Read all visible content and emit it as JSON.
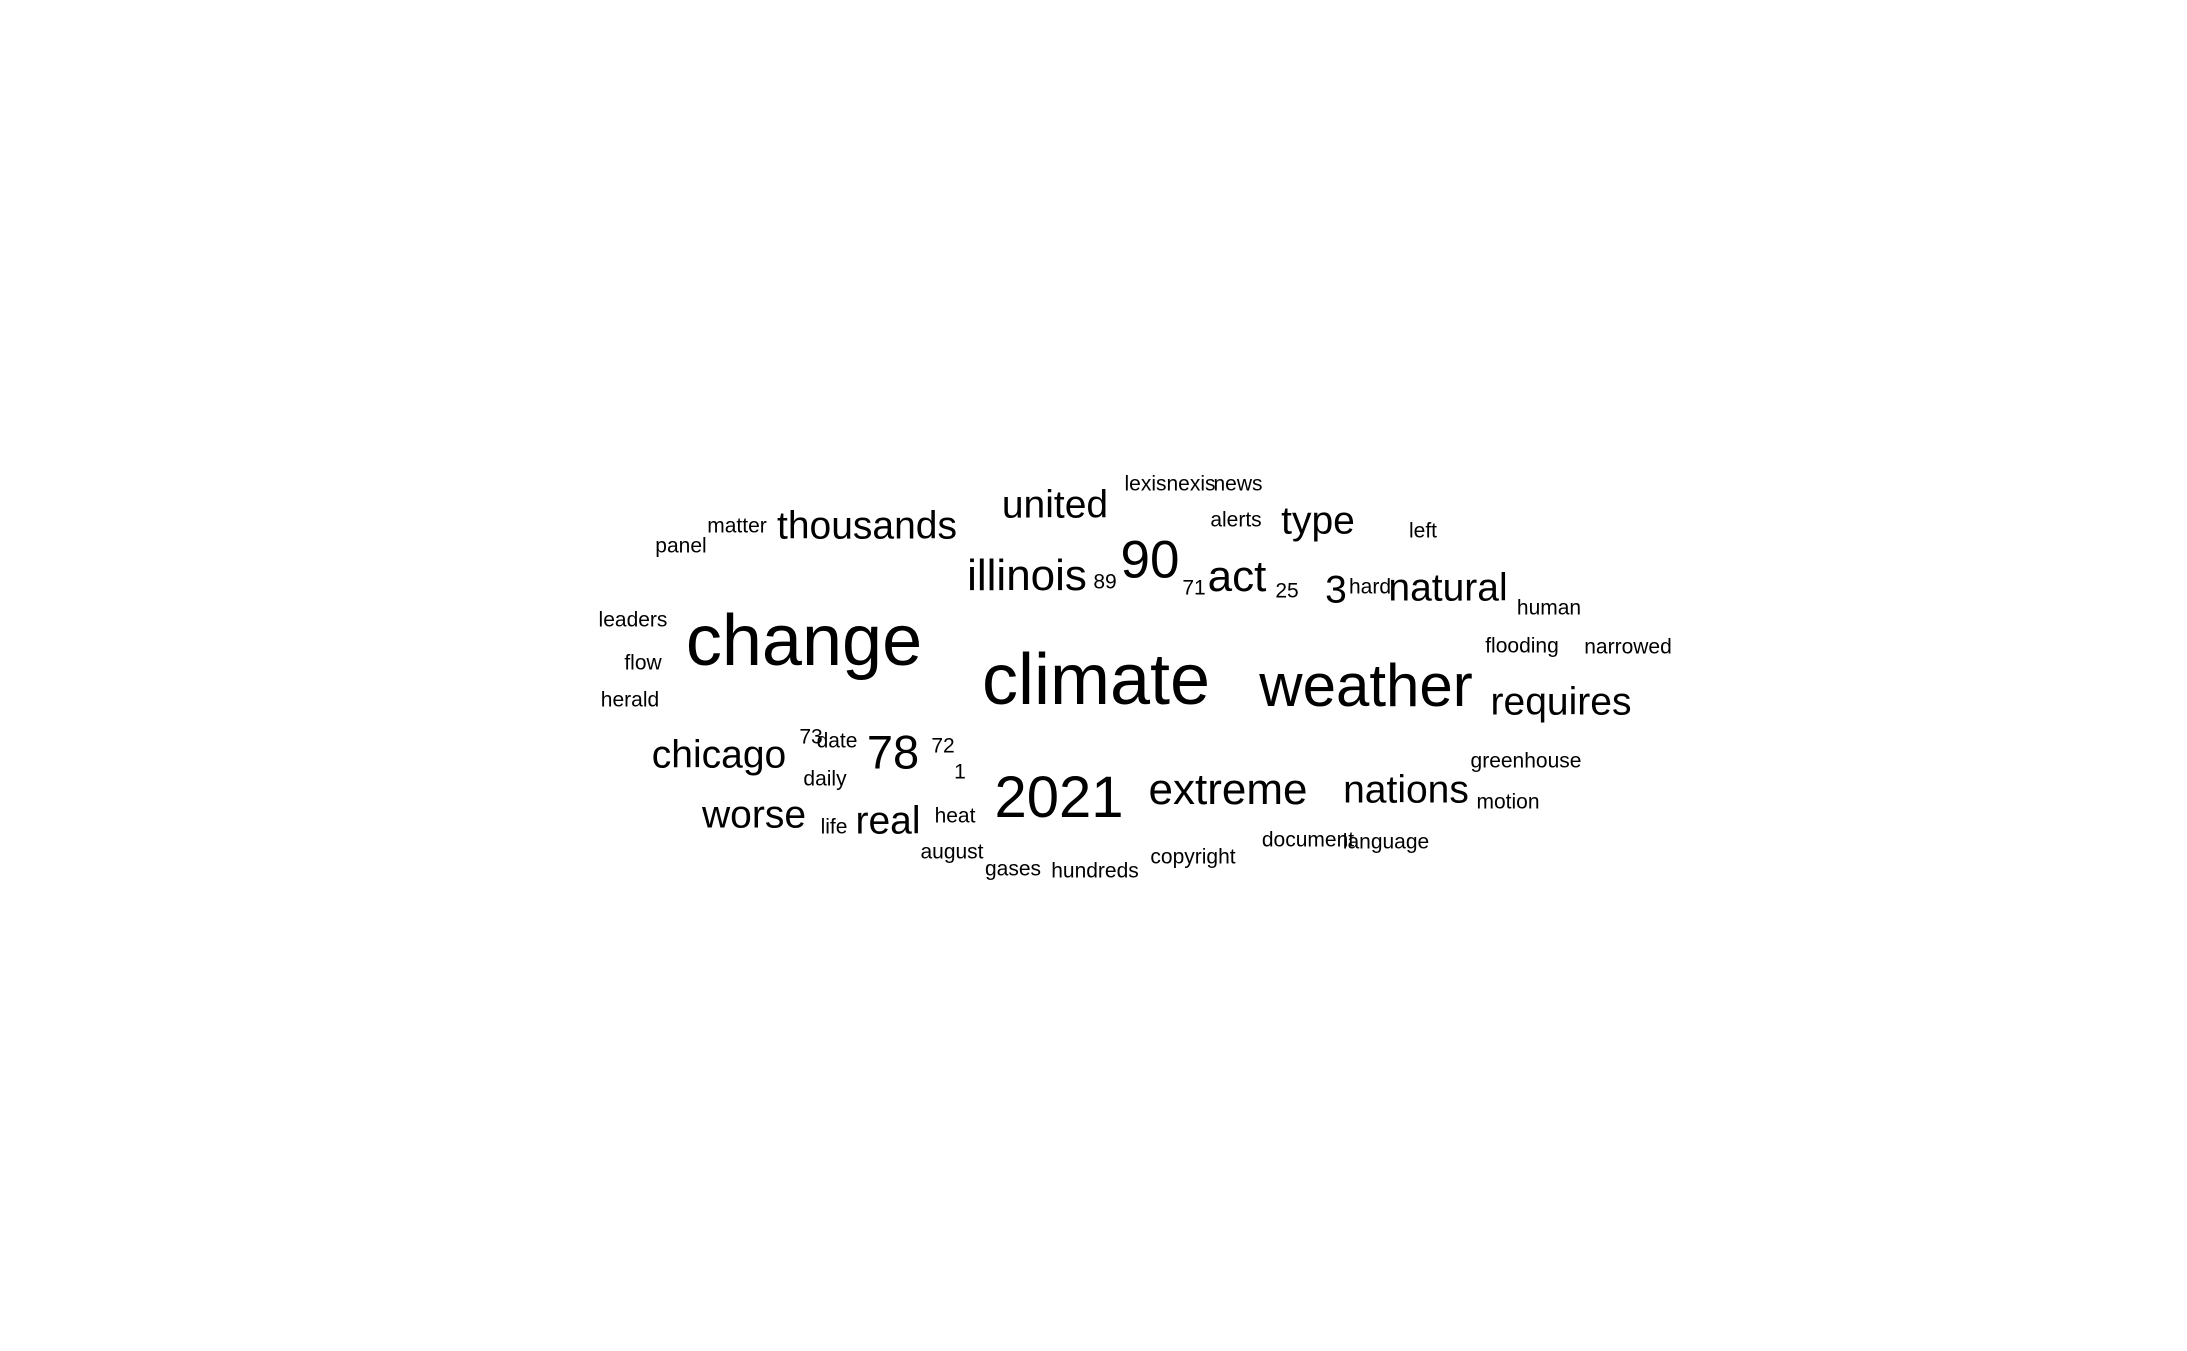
{
  "theme": {
    "background": "#ffffff",
    "text": "#000000"
  },
  "words": [
    {
      "text": "climate",
      "weight": 100
    },
    {
      "text": "change",
      "weight": 100
    },
    {
      "text": "weather",
      "weight": 80
    },
    {
      "text": "2021",
      "weight": 76
    },
    {
      "text": "90",
      "weight": 69
    },
    {
      "text": "78",
      "weight": 58
    },
    {
      "text": "illinois",
      "weight": 53
    },
    {
      "text": "act",
      "weight": 53
    },
    {
      "text": "extreme",
      "weight": 53
    },
    {
      "text": "thousands",
      "weight": 45
    },
    {
      "text": "united",
      "weight": 45
    },
    {
      "text": "type",
      "weight": 45
    },
    {
      "text": "natural",
      "weight": 45
    },
    {
      "text": "requires",
      "weight": 45
    },
    {
      "text": "chicago",
      "weight": 45
    },
    {
      "text": "worse",
      "weight": 45
    },
    {
      "text": "real",
      "weight": 45
    },
    {
      "text": "nations",
      "weight": 45
    },
    {
      "text": "3",
      "weight": 45
    },
    {
      "text": "lexisnexis",
      "weight": 15
    },
    {
      "text": "news",
      "weight": 15
    },
    {
      "text": "alerts",
      "weight": 15
    },
    {
      "text": "matter",
      "weight": 15
    },
    {
      "text": "panel",
      "weight": 15
    },
    {
      "text": "left",
      "weight": 15
    },
    {
      "text": "89",
      "weight": 15
    },
    {
      "text": "71",
      "weight": 15
    },
    {
      "text": "25",
      "weight": 15
    },
    {
      "text": "hard",
      "weight": 15
    },
    {
      "text": "human",
      "weight": 15
    },
    {
      "text": "leaders",
      "weight": 15
    },
    {
      "text": "flow",
      "weight": 15
    },
    {
      "text": "herald",
      "weight": 15
    },
    {
      "text": "flooding",
      "weight": 15
    },
    {
      "text": "narrowed",
      "weight": 15
    },
    {
      "text": "73",
      "weight": 15
    },
    {
      "text": "date",
      "weight": 15
    },
    {
      "text": "72",
      "weight": 15
    },
    {
      "text": "1",
      "weight": 15
    },
    {
      "text": "daily",
      "weight": 15
    },
    {
      "text": "greenhouse",
      "weight": 15
    },
    {
      "text": "motion",
      "weight": 15
    },
    {
      "text": "life",
      "weight": 15
    },
    {
      "text": "heat",
      "weight": 15
    },
    {
      "text": "august",
      "weight": 15
    },
    {
      "text": "gases",
      "weight": 15
    },
    {
      "text": "hundreds",
      "weight": 15
    },
    {
      "text": "copyright",
      "weight": 15
    },
    {
      "text": "document",
      "weight": 15
    },
    {
      "text": "language",
      "weight": 15
    }
  ]
}
